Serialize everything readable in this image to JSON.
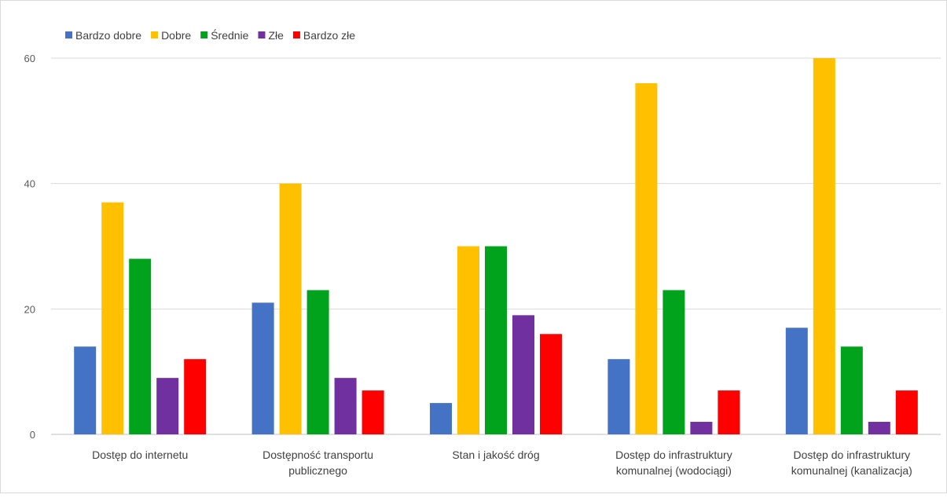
{
  "chart_data": {
    "type": "bar",
    "title": "",
    "xlabel": "",
    "ylabel": "",
    "ylim": [
      0,
      60
    ],
    "yticks": [
      0,
      20,
      40,
      60
    ],
    "grid": true,
    "legend_position": "top-left",
    "categories": [
      [
        "Dostęp do internetu"
      ],
      [
        "Dostępność transportu",
        "publicznego"
      ],
      [
        "Stan i jakość dróg"
      ],
      [
        "Dostęp do infrastruktury",
        "komunalnej (wodociągi)"
      ],
      [
        "Dostęp do infrastruktury",
        "komunalnej (kanalizacja)"
      ]
    ],
    "series": [
      {
        "name": "Bardzo dobre",
        "color": "#4472C4",
        "values": [
          14,
          21,
          5,
          12,
          17
        ]
      },
      {
        "name": "Dobre",
        "color": "#FFC000",
        "values": [
          37,
          40,
          30,
          56,
          60
        ]
      },
      {
        "name": "Średnie",
        "color": "#00A31B",
        "values": [
          28,
          23,
          30,
          23,
          14
        ]
      },
      {
        "name": "Złe",
        "color": "#7030A0",
        "values": [
          9,
          9,
          19,
          2,
          2
        ]
      },
      {
        "name": "Bardzo złe",
        "color": "#FF0000",
        "values": [
          12,
          7,
          16,
          7,
          7
        ]
      }
    ]
  }
}
